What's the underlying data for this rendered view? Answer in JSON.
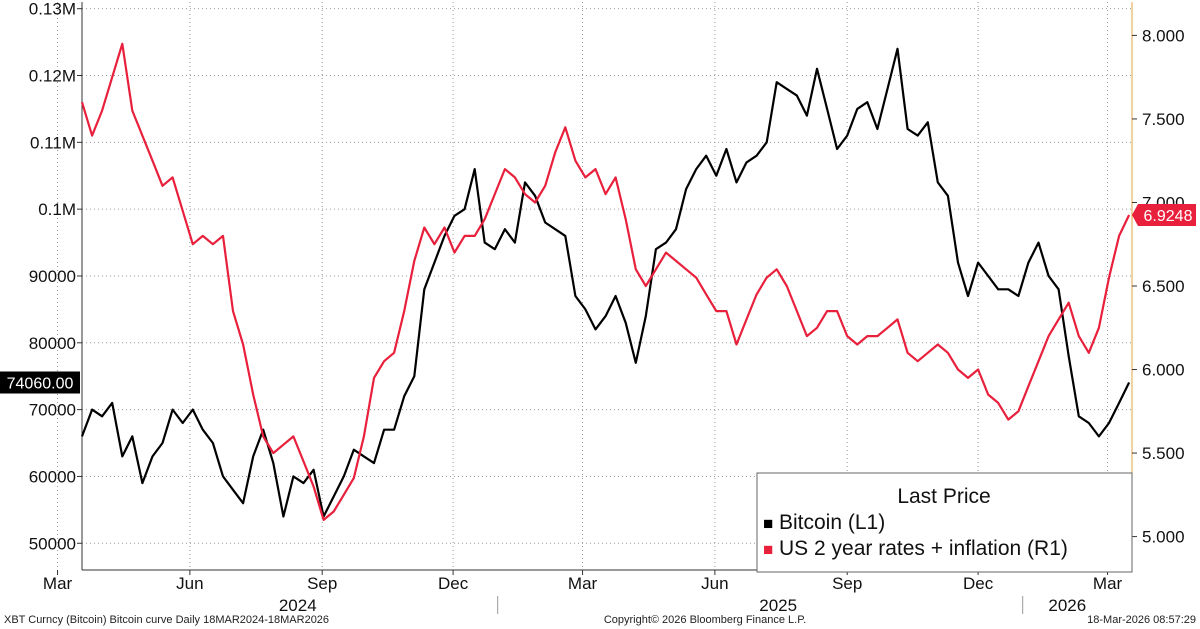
{
  "chart_data": {
    "type": "line",
    "title": "",
    "legend": {
      "title": "Last Price",
      "placement": "bottom-right",
      "entries": [
        {
          "marker": "■",
          "label": "Bitcoin  (L1)",
          "color": "#000000"
        },
        {
          "marker": "■",
          "label": "US 2 year rates + inflation  (R1)",
          "color": "#e8203c"
        }
      ]
    },
    "x_axis": {
      "month_ticks": [
        {
          "label": "Mar",
          "date": "2024-03-01"
        },
        {
          "label": "Jun",
          "date": "2024-06-01"
        },
        {
          "label": "Sep",
          "date": "2024-09-01"
        },
        {
          "label": "Dec",
          "date": "2024-12-01"
        },
        {
          "label": "Mar",
          "date": "2025-03-01"
        },
        {
          "label": "Jun",
          "date": "2025-06-01"
        },
        {
          "label": "Sep",
          "date": "2025-09-01"
        },
        {
          "label": "Dec",
          "date": "2025-12-01"
        },
        {
          "label": "Mar",
          "date": "2026-03-01"
        }
      ],
      "year_labels": [
        {
          "label": "2024",
          "date": "2024-08-15"
        },
        {
          "label": "2025",
          "date": "2025-07-15"
        },
        {
          "label": "2026",
          "date": "2026-02-01"
        }
      ],
      "year_dividers": [
        "2025-01-01",
        "2026-01-01"
      ],
      "range": [
        "2024-03-18",
        "2026-03-18"
      ]
    },
    "y_left": {
      "range": [
        46000,
        131000
      ],
      "ticks": [
        {
          "label": "50000",
          "value": 50000
        },
        {
          "label": "60000",
          "value": 60000
        },
        {
          "label": "70000",
          "value": 70000
        },
        {
          "label": "80000",
          "value": 80000
        },
        {
          "label": "90000",
          "value": 90000
        },
        {
          "label": "0.1M",
          "value": 100000
        },
        {
          "label": "0.11M",
          "value": 110000
        },
        {
          "label": "0.12M",
          "value": 120000
        },
        {
          "label": "0.13M",
          "value": 130000
        }
      ],
      "last_value_tag": {
        "label": "74060.00",
        "value": 74060
      }
    },
    "y_right": {
      "range": [
        4.8,
        8.2
      ],
      "ticks": [
        {
          "label": "5.000",
          "value": 5.0
        },
        {
          "label": "5.500",
          "value": 5.5
        },
        {
          "label": "6.000",
          "value": 6.0
        },
        {
          "label": "6.500",
          "value": 6.5
        },
        {
          "label": "7.000",
          "value": 7.0
        },
        {
          "label": "7.500",
          "value": 7.5
        },
        {
          "label": "8.000",
          "value": 8.0
        }
      ],
      "last_value_tag": {
        "label": "6.9248",
        "value": 6.9248
      }
    },
    "grid": true,
    "series": [
      {
        "name": "Bitcoin",
        "axis": "left",
        "color": "#000000",
        "points": [
          [
            "2024-03-18",
            66000
          ],
          [
            "2024-03-25",
            70000
          ],
          [
            "2024-04-01",
            69000
          ],
          [
            "2024-04-08",
            71000
          ],
          [
            "2024-04-15",
            63000
          ],
          [
            "2024-04-22",
            66000
          ],
          [
            "2024-04-29",
            59000
          ],
          [
            "2024-05-06",
            63000
          ],
          [
            "2024-05-13",
            65000
          ],
          [
            "2024-05-20",
            70000
          ],
          [
            "2024-05-27",
            68000
          ],
          [
            "2024-06-03",
            70000
          ],
          [
            "2024-06-10",
            67000
          ],
          [
            "2024-06-17",
            65000
          ],
          [
            "2024-06-24",
            60000
          ],
          [
            "2024-07-01",
            58000
          ],
          [
            "2024-07-08",
            56000
          ],
          [
            "2024-07-15",
            63000
          ],
          [
            "2024-07-22",
            67000
          ],
          [
            "2024-07-29",
            62000
          ],
          [
            "2024-08-05",
            54000
          ],
          [
            "2024-08-12",
            60000
          ],
          [
            "2024-08-19",
            59000
          ],
          [
            "2024-08-26",
            61000
          ],
          [
            "2024-09-02",
            54000
          ],
          [
            "2024-09-09",
            57000
          ],
          [
            "2024-09-16",
            60000
          ],
          [
            "2024-09-23",
            64000
          ],
          [
            "2024-09-30",
            63000
          ],
          [
            "2024-10-07",
            62000
          ],
          [
            "2024-10-14",
            67000
          ],
          [
            "2024-10-21",
            67000
          ],
          [
            "2024-10-28",
            72000
          ],
          [
            "2024-11-04",
            75000
          ],
          [
            "2024-11-11",
            88000
          ],
          [
            "2024-11-18",
            92000
          ],
          [
            "2024-11-25",
            96000
          ],
          [
            "2024-12-02",
            99000
          ],
          [
            "2024-12-09",
            100000
          ],
          [
            "2024-12-16",
            106000
          ],
          [
            "2024-12-23",
            95000
          ],
          [
            "2024-12-30",
            94000
          ],
          [
            "2025-01-06",
            97000
          ],
          [
            "2025-01-13",
            95000
          ],
          [
            "2025-01-20",
            104000
          ],
          [
            "2025-01-27",
            102000
          ],
          [
            "2025-02-03",
            98000
          ],
          [
            "2025-02-10",
            97000
          ],
          [
            "2025-02-17",
            96000
          ],
          [
            "2025-02-24",
            87000
          ],
          [
            "2025-03-03",
            85000
          ],
          [
            "2025-03-10",
            82000
          ],
          [
            "2025-03-17",
            84000
          ],
          [
            "2025-03-24",
            87000
          ],
          [
            "2025-03-31",
            83000
          ],
          [
            "2025-04-07",
            77000
          ],
          [
            "2025-04-14",
            84000
          ],
          [
            "2025-04-21",
            94000
          ],
          [
            "2025-04-28",
            95000
          ],
          [
            "2025-05-05",
            97000
          ],
          [
            "2025-05-12",
            103000
          ],
          [
            "2025-05-19",
            106000
          ],
          [
            "2025-05-26",
            108000
          ],
          [
            "2025-06-02",
            105000
          ],
          [
            "2025-06-09",
            109000
          ],
          [
            "2025-06-16",
            104000
          ],
          [
            "2025-06-23",
            107000
          ],
          [
            "2025-06-30",
            108000
          ],
          [
            "2025-07-07",
            110000
          ],
          [
            "2025-07-14",
            119000
          ],
          [
            "2025-07-21",
            118000
          ],
          [
            "2025-07-28",
            117000
          ],
          [
            "2025-08-04",
            114000
          ],
          [
            "2025-08-11",
            121000
          ],
          [
            "2025-08-18",
            115000
          ],
          [
            "2025-08-25",
            109000
          ],
          [
            "2025-09-01",
            111000
          ],
          [
            "2025-09-08",
            115000
          ],
          [
            "2025-09-15",
            116000
          ],
          [
            "2025-09-22",
            112000
          ],
          [
            "2025-09-29",
            118000
          ],
          [
            "2025-10-06",
            124000
          ],
          [
            "2025-10-13",
            112000
          ],
          [
            "2025-10-20",
            111000
          ],
          [
            "2025-10-27",
            113000
          ],
          [
            "2025-11-03",
            104000
          ],
          [
            "2025-11-10",
            102000
          ],
          [
            "2025-11-17",
            92000
          ],
          [
            "2025-11-24",
            87000
          ],
          [
            "2025-12-01",
            92000
          ],
          [
            "2025-12-08",
            90000
          ],
          [
            "2025-12-15",
            88000
          ],
          [
            "2025-12-22",
            88000
          ],
          [
            "2025-12-29",
            87000
          ],
          [
            "2026-01-05",
            92000
          ],
          [
            "2026-01-12",
            95000
          ],
          [
            "2026-01-19",
            90000
          ],
          [
            "2026-01-26",
            88000
          ],
          [
            "2026-02-02",
            78000
          ],
          [
            "2026-02-09",
            69000
          ],
          [
            "2026-02-16",
            68000
          ],
          [
            "2026-02-23",
            66000
          ],
          [
            "2026-03-02",
            68000
          ],
          [
            "2026-03-09",
            71000
          ],
          [
            "2026-03-16",
            74060
          ]
        ]
      },
      {
        "name": "US 2 year rates + inflation",
        "axis": "right",
        "color": "#e8203c",
        "points": [
          [
            "2024-03-18",
            7.6
          ],
          [
            "2024-03-25",
            7.4
          ],
          [
            "2024-04-01",
            7.55
          ],
          [
            "2024-04-08",
            7.75
          ],
          [
            "2024-04-15",
            7.95
          ],
          [
            "2024-04-22",
            7.55
          ],
          [
            "2024-04-29",
            7.4
          ],
          [
            "2024-05-06",
            7.25
          ],
          [
            "2024-05-13",
            7.1
          ],
          [
            "2024-05-20",
            7.15
          ],
          [
            "2024-05-27",
            6.95
          ],
          [
            "2024-06-03",
            6.75
          ],
          [
            "2024-06-10",
            6.8
          ],
          [
            "2024-06-17",
            6.75
          ],
          [
            "2024-06-24",
            6.8
          ],
          [
            "2024-07-01",
            6.35
          ],
          [
            "2024-07-08",
            6.15
          ],
          [
            "2024-07-15",
            5.85
          ],
          [
            "2024-07-22",
            5.6
          ],
          [
            "2024-07-29",
            5.5
          ],
          [
            "2024-08-05",
            5.55
          ],
          [
            "2024-08-12",
            5.6
          ],
          [
            "2024-08-19",
            5.45
          ],
          [
            "2024-08-26",
            5.3
          ],
          [
            "2024-09-02",
            5.1
          ],
          [
            "2024-09-09",
            5.15
          ],
          [
            "2024-09-16",
            5.25
          ],
          [
            "2024-09-23",
            5.35
          ],
          [
            "2024-09-30",
            5.6
          ],
          [
            "2024-10-07",
            5.95
          ],
          [
            "2024-10-14",
            6.05
          ],
          [
            "2024-10-21",
            6.1
          ],
          [
            "2024-10-28",
            6.35
          ],
          [
            "2024-11-04",
            6.65
          ],
          [
            "2024-11-11",
            6.85
          ],
          [
            "2024-11-18",
            6.75
          ],
          [
            "2024-11-25",
            6.85
          ],
          [
            "2024-12-02",
            6.7
          ],
          [
            "2024-12-09",
            6.8
          ],
          [
            "2024-12-16",
            6.8
          ],
          [
            "2024-12-23",
            6.9
          ],
          [
            "2024-12-30",
            7.05
          ],
          [
            "2025-01-06",
            7.2
          ],
          [
            "2025-01-13",
            7.15
          ],
          [
            "2025-01-20",
            7.05
          ],
          [
            "2025-01-27",
            7.0
          ],
          [
            "2025-02-03",
            7.1
          ],
          [
            "2025-02-10",
            7.3
          ],
          [
            "2025-02-17",
            7.45
          ],
          [
            "2025-02-24",
            7.25
          ],
          [
            "2025-03-03",
            7.15
          ],
          [
            "2025-03-10",
            7.2
          ],
          [
            "2025-03-17",
            7.05
          ],
          [
            "2025-03-24",
            7.15
          ],
          [
            "2025-03-31",
            6.9
          ],
          [
            "2025-04-07",
            6.6
          ],
          [
            "2025-04-14",
            6.5
          ],
          [
            "2025-04-21",
            6.6
          ],
          [
            "2025-04-28",
            6.7
          ],
          [
            "2025-05-05",
            6.65
          ],
          [
            "2025-05-12",
            6.6
          ],
          [
            "2025-05-19",
            6.55
          ],
          [
            "2025-05-26",
            6.45
          ],
          [
            "2025-06-02",
            6.35
          ],
          [
            "2025-06-09",
            6.35
          ],
          [
            "2025-06-16",
            6.15
          ],
          [
            "2025-06-23",
            6.3
          ],
          [
            "2025-06-30",
            6.45
          ],
          [
            "2025-07-07",
            6.55
          ],
          [
            "2025-07-14",
            6.6
          ],
          [
            "2025-07-21",
            6.5
          ],
          [
            "2025-07-28",
            6.35
          ],
          [
            "2025-08-04",
            6.2
          ],
          [
            "2025-08-11",
            6.25
          ],
          [
            "2025-08-18",
            6.35
          ],
          [
            "2025-08-25",
            6.35
          ],
          [
            "2025-09-01",
            6.2
          ],
          [
            "2025-09-08",
            6.15
          ],
          [
            "2025-09-15",
            6.2
          ],
          [
            "2025-09-22",
            6.2
          ],
          [
            "2025-09-29",
            6.25
          ],
          [
            "2025-10-06",
            6.3
          ],
          [
            "2025-10-13",
            6.1
          ],
          [
            "2025-10-20",
            6.05
          ],
          [
            "2025-10-27",
            6.1
          ],
          [
            "2025-11-03",
            6.15
          ],
          [
            "2025-11-10",
            6.1
          ],
          [
            "2025-11-17",
            6.0
          ],
          [
            "2025-11-24",
            5.95
          ],
          [
            "2025-12-01",
            6.0
          ],
          [
            "2025-12-08",
            5.85
          ],
          [
            "2025-12-15",
            5.8
          ],
          [
            "2025-12-22",
            5.7
          ],
          [
            "2025-12-29",
            5.75
          ],
          [
            "2026-01-05",
            5.9
          ],
          [
            "2026-01-12",
            6.05
          ],
          [
            "2026-01-19",
            6.2
          ],
          [
            "2026-01-26",
            6.3
          ],
          [
            "2026-02-02",
            6.4
          ],
          [
            "2026-02-09",
            6.2
          ],
          [
            "2026-02-16",
            6.1
          ],
          [
            "2026-02-23",
            6.25
          ],
          [
            "2026-03-02",
            6.55
          ],
          [
            "2026-03-09",
            6.8
          ],
          [
            "2026-03-16",
            6.9248
          ]
        ]
      }
    ]
  },
  "footer": {
    "left": "XBT Curncy (Bitcoin) Bitcoin curve Daily 18MAR2024-18MAR2026",
    "center": "Copyright© 2026 Bloomberg Finance L.P.",
    "right": "18-Mar-2026 08:57:29"
  }
}
